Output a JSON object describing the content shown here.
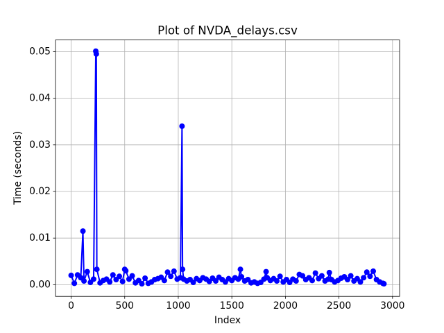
{
  "chart_data": {
    "type": "line",
    "title": "Plot of NVDA_delays.csv",
    "x_label": "Index",
    "y_label": "Time (seconds)",
    "x": [
      0,
      30,
      60,
      90,
      110,
      120,
      150,
      180,
      210,
      230,
      235,
      240,
      270,
      300,
      330,
      360,
      390,
      420,
      450,
      480,
      500,
      510,
      540,
      570,
      600,
      630,
      660,
      690,
      720,
      750,
      780,
      810,
      840,
      870,
      900,
      930,
      960,
      990,
      1020,
      1035,
      1040,
      1050,
      1080,
      1110,
      1140,
      1170,
      1200,
      1230,
      1260,
      1290,
      1320,
      1350,
      1380,
      1410,
      1440,
      1470,
      1500,
      1530,
      1560,
      1580,
      1590,
      1620,
      1650,
      1680,
      1710,
      1740,
      1770,
      1800,
      1820,
      1830,
      1860,
      1890,
      1920,
      1950,
      1980,
      2010,
      2040,
      2070,
      2100,
      2130,
      2160,
      2190,
      2220,
      2250,
      2280,
      2310,
      2340,
      2370,
      2400,
      2410,
      2430,
      2460,
      2490,
      2520,
      2550,
      2580,
      2610,
      2640,
      2670,
      2700,
      2730,
      2760,
      2790,
      2820,
      2850,
      2880,
      2910,
      2920
    ],
    "series": [
      {
        "color": "#0000ff",
        "values": [
          0.002,
          0.0003,
          0.0021,
          0.0015,
          0.0115,
          0.0008,
          0.0028,
          0.0005,
          0.0012,
          0.0501,
          0.0495,
          0.0033,
          0.0004,
          0.0009,
          0.0012,
          0.0006,
          0.0021,
          0.0011,
          0.0018,
          0.0007,
          0.0033,
          0.003,
          0.0012,
          0.0019,
          0.0004,
          0.0009,
          0.0002,
          0.0014,
          0.0003,
          0.0006,
          0.0011,
          0.0013,
          0.0016,
          0.0009,
          0.0027,
          0.0018,
          0.0029,
          0.0012,
          0.0015,
          0.034,
          0.0033,
          0.0012,
          0.0008,
          0.0011,
          0.0005,
          0.0013,
          0.0009,
          0.0015,
          0.0012,
          0.0007,
          0.0014,
          0.0008,
          0.0016,
          0.0011,
          0.0006,
          0.0013,
          0.0009,
          0.0015,
          0.0012,
          0.0033,
          0.0017,
          0.0008,
          0.0011,
          0.0004,
          0.0006,
          0.0003,
          0.0005,
          0.0012,
          0.0028,
          0.0015,
          0.0009,
          0.0013,
          0.0008,
          0.0018,
          0.0006,
          0.0011,
          0.0005,
          0.0012,
          0.0008,
          0.0022,
          0.0019,
          0.0011,
          0.0015,
          0.0009,
          0.0025,
          0.0013,
          0.0019,
          0.0008,
          0.0012,
          0.0026,
          0.0011,
          0.0006,
          0.0009,
          0.0014,
          0.0017,
          0.0011,
          0.0019,
          0.0008,
          0.0013,
          0.0006,
          0.0015,
          0.0027,
          0.0018,
          0.0029,
          0.0011,
          0.0006,
          0.0003,
          0.0002
        ]
      }
    ],
    "xlim": [
      -146,
      3066
    ],
    "xticks": [
      0,
      500,
      1000,
      1500,
      2000,
      2500,
      3000
    ],
    "ylim": [
      -0.0025,
      0.0525
    ],
    "yticks": [
      {
        "value": 0,
        "label": "0.00"
      },
      0.01,
      0.02,
      0.03,
      0.04,
      0.05
    ],
    "grid": true
  }
}
